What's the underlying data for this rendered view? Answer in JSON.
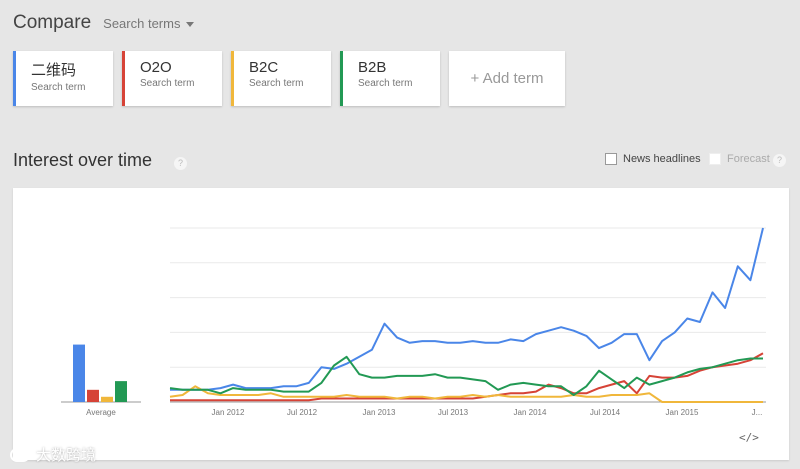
{
  "header": {
    "title": "Compare",
    "search_terms_label": "Search terms"
  },
  "terms": [
    {
      "term": "二维码",
      "sub": "Search term",
      "color": "#4a86e8"
    },
    {
      "term": "O2O",
      "sub": "Search term",
      "color": "#d64337"
    },
    {
      "term": "B2C",
      "sub": "Search term",
      "color": "#f0b73b"
    },
    {
      "term": "B2B",
      "sub": "Search term",
      "color": "#229954"
    }
  ],
  "add_term_label": "+ Add term",
  "section": {
    "title": "Interest over time",
    "news_headlines_label": "News headlines",
    "forecast_label": "Forecast"
  },
  "chart_data": {
    "type": "line",
    "x_tick_labels": [
      "Jan 2012",
      "Jul 2012",
      "Jan 2013",
      "Jul 2013",
      "Jan 2014",
      "Jul 2014",
      "Jan 2015",
      "J..."
    ],
    "x_start": "2011-09",
    "x_end": "2015-05",
    "ylim": [
      0,
      100
    ],
    "grid": true,
    "average": {
      "label": "Average",
      "values": [
        {
          "series": "二维码",
          "value": 33
        },
        {
          "series": "O2O",
          "value": 7
        },
        {
          "series": "B2C",
          "value": 3
        },
        {
          "series": "B2B",
          "value": 12
        }
      ]
    },
    "series": [
      {
        "name": "二维码",
        "color": "#4a86e8",
        "values": [
          7,
          7,
          7,
          7,
          8,
          10,
          8,
          8,
          8,
          9,
          9,
          11,
          20,
          19,
          22,
          26,
          30,
          45,
          37,
          34,
          35,
          35,
          34,
          34,
          35,
          34,
          34,
          36,
          35,
          39,
          41,
          43,
          41,
          38,
          31,
          34,
          39,
          39,
          24,
          35,
          40,
          48,
          46,
          63,
          54,
          78,
          70,
          100
        ]
      },
      {
        "name": "O2O",
        "color": "#d64337",
        "values": [
          1,
          1,
          1,
          1,
          1,
          1,
          1,
          1,
          1,
          1,
          1,
          1,
          2,
          2,
          2,
          2,
          2,
          2,
          2,
          2,
          2,
          2,
          2,
          2,
          2,
          3,
          4,
          5,
          5,
          6,
          10,
          8,
          5,
          5,
          8,
          10,
          12,
          5,
          15,
          14,
          14,
          15,
          18,
          20,
          21,
          22,
          24,
          28
        ]
      },
      {
        "name": "B2C",
        "color": "#f0b73b",
        "values": [
          3,
          4,
          9,
          5,
          4,
          4,
          4,
          4,
          5,
          3,
          3,
          3,
          3,
          3,
          4,
          3,
          3,
          3,
          2,
          3,
          3,
          2,
          3,
          3,
          4,
          3,
          4,
          3,
          3,
          3,
          3,
          3,
          4,
          3,
          3,
          4,
          4,
          4,
          5,
          0,
          0,
          0,
          0,
          0,
          0,
          0,
          0,
          0
        ]
      },
      {
        "name": "B2B",
        "color": "#229954",
        "values": [
          8,
          7,
          7,
          7,
          5,
          8,
          7,
          7,
          7,
          6,
          6,
          6,
          11,
          21,
          26,
          16,
          14,
          14,
          15,
          15,
          15,
          16,
          14,
          14,
          13,
          12,
          7,
          10,
          11,
          10,
          9,
          9,
          4,
          9,
          18,
          13,
          8,
          14,
          10,
          12,
          14,
          17,
          19,
          20,
          22,
          24,
          25,
          25
        ]
      }
    ]
  }
}
